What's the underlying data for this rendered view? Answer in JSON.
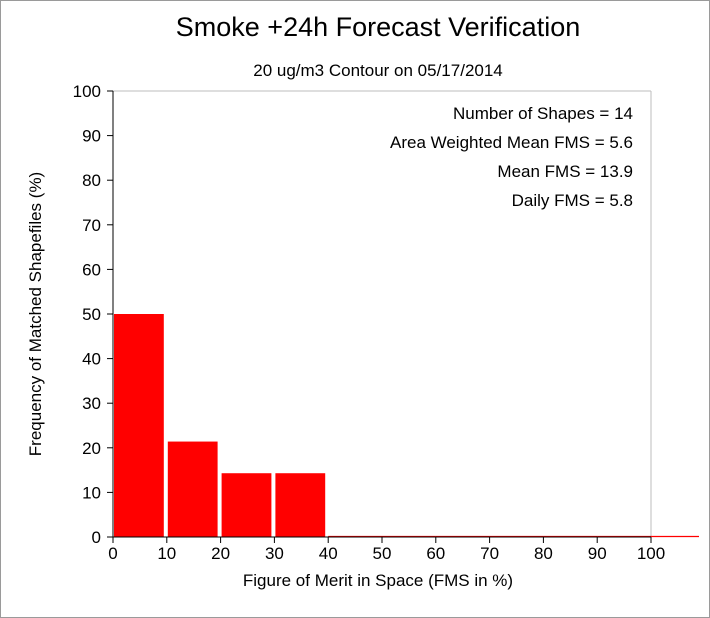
{
  "chart_data": {
    "type": "bar",
    "title": "Smoke +24h Forecast Verification",
    "subtitle": "20 ug/m3 Contour on 05/17/2014",
    "xlabel": "Figure of Merit in Space (FMS in %)",
    "ylabel": "Frequency of Matched Shapefiles (%)",
    "xlim": [
      0,
      100
    ],
    "ylim": [
      0,
      100
    ],
    "x_ticks": [
      0,
      10,
      20,
      30,
      40,
      50,
      60,
      70,
      80,
      90,
      100
    ],
    "y_ticks": [
      0,
      10,
      20,
      30,
      40,
      50,
      60,
      70,
      80,
      90,
      100
    ],
    "bins": [
      {
        "from": 0,
        "to": 10,
        "value": 50.0
      },
      {
        "from": 10,
        "to": 20,
        "value": 21.4
      },
      {
        "from": 20,
        "to": 30,
        "value": 14.3
      },
      {
        "from": 30,
        "to": 40,
        "value": 14.3
      },
      {
        "from": 40,
        "to": 50,
        "value": 0
      },
      {
        "from": 50,
        "to": 60,
        "value": 0
      },
      {
        "from": 60,
        "to": 70,
        "value": 0
      },
      {
        "from": 70,
        "to": 80,
        "value": 0
      },
      {
        "from": 80,
        "to": 90,
        "value": 0
      },
      {
        "from": 90,
        "to": 100,
        "value": 0
      }
    ],
    "stats": [
      "Number of Shapes = 14",
      "Area Weighted Mean FMS = 5.6",
      "Mean FMS = 13.9",
      "Daily FMS = 5.8"
    ],
    "grid": false,
    "colors": {
      "bar": "#ff0000",
      "frame": "#000000"
    }
  }
}
